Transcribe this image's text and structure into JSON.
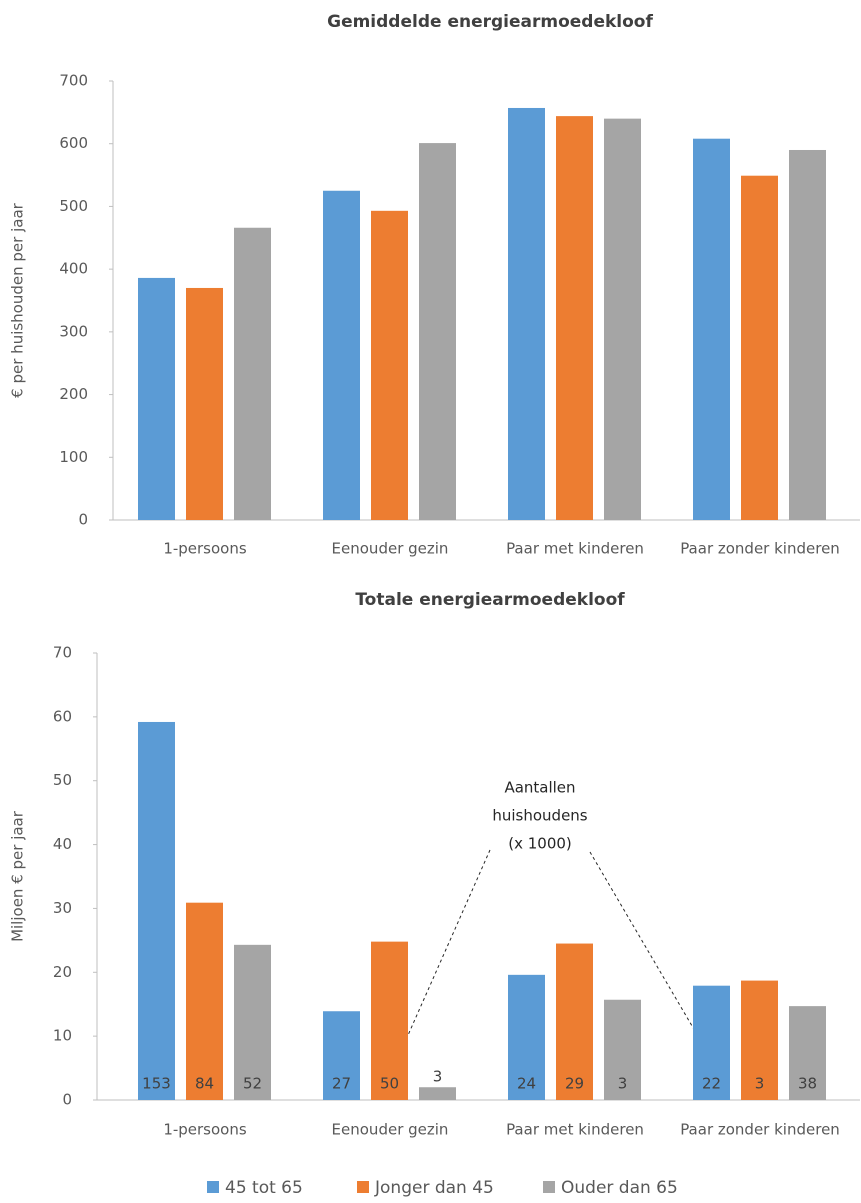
{
  "chart_data": [
    {
      "type": "bar",
      "title": "Gemiddelde energiearmoedekloof",
      "y_label": "€ per huishouden per jaar",
      "categories": [
        "1-persoons",
        "Eenouder gezin",
        "Paar met kinderen",
        "Paar zonder kinderen"
      ],
      "series": [
        {
          "color": "#5b9bd5",
          "values": [
            386,
            525,
            657,
            608
          ]
        },
        {
          "color": "#ed7d31",
          "values": [
            370,
            493,
            644,
            549
          ]
        },
        {
          "color": "#a5a5a5",
          "values": [
            466,
            601,
            640,
            590
          ]
        }
      ],
      "ylim": [
        0,
        700
      ],
      "yticks": [
        0,
        100,
        200,
        300,
        400,
        500,
        600,
        700
      ]
    },
    {
      "type": "bar",
      "title": "Totale energiearmoedekloof",
      "y_label": "Miljoen € per jaar",
      "categories": [
        "1-persoons",
        "Eenouder gezin",
        "Paar met kinderen",
        "Paar zonder kinderen"
      ],
      "series": [
        {
          "name": "45 tot 65",
          "color": "#5b9bd5",
          "values": [
            59.2,
            13.9,
            19.6,
            17.9
          ],
          "households": [
            153,
            27,
            24,
            22
          ]
        },
        {
          "name": "Jonger dan 45",
          "color": "#ed7d31",
          "values": [
            30.9,
            24.8,
            24.5,
            18.7
          ],
          "households": [
            84,
            50,
            29,
            3
          ]
        },
        {
          "name": "Ouder dan 65",
          "color": "#a5a5a5",
          "values": [
            24.3,
            2.0,
            15.7,
            14.7
          ],
          "households": [
            52,
            3,
            3,
            38
          ]
        }
      ],
      "ylim": [
        0,
        70
      ],
      "yticks": [
        0,
        10,
        20,
        30,
        40,
        50,
        60,
        70
      ],
      "annotation": [
        "Aantallen",
        "huishoudens",
        "(x 1000)"
      ]
    }
  ]
}
